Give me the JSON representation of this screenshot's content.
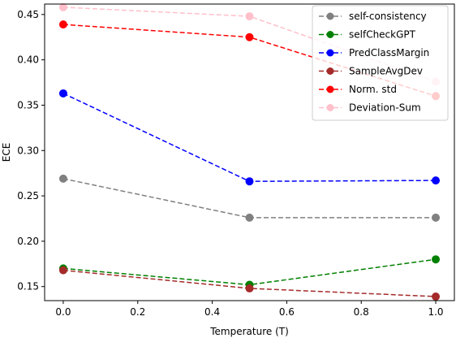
{
  "chart_data": {
    "type": "line",
    "title": "",
    "xlabel": "Temperature (T)",
    "ylabel": "ECE",
    "xlim": [
      -0.05,
      1.05
    ],
    "ylim": [
      0.1345,
      0.4615
    ],
    "xticks": [
      "0.0",
      "0.2",
      "0.4",
      "0.6",
      "0.8",
      "1.0"
    ],
    "yticks": [
      "0.15",
      "0.20",
      "0.25",
      "0.30",
      "0.35",
      "0.40",
      "0.45"
    ],
    "x": [
      0.0,
      0.5,
      1.0
    ],
    "grid": false,
    "legend_position": "top-right",
    "series": [
      {
        "name": "self-consistency",
        "color": "#808080",
        "values": [
          0.269,
          0.226,
          0.226
        ]
      },
      {
        "name": "selfCheckGPT",
        "color": "#008000",
        "values": [
          0.17,
          0.152,
          0.18
        ]
      },
      {
        "name": "PredClassMargin",
        "color": "#0000ff",
        "values": [
          0.363,
          0.266,
          0.267
        ]
      },
      {
        "name": "SampleAvgDev",
        "color": "#a52a2a",
        "values": [
          0.168,
          0.148,
          0.139
        ]
      },
      {
        "name": "Norm. std",
        "color": "#ff0000",
        "values": [
          0.439,
          0.425,
          0.36
        ]
      },
      {
        "name": "Deviation-Sum",
        "color": "#ffc0cb",
        "values": [
          0.458,
          0.448,
          0.376
        ]
      }
    ]
  }
}
